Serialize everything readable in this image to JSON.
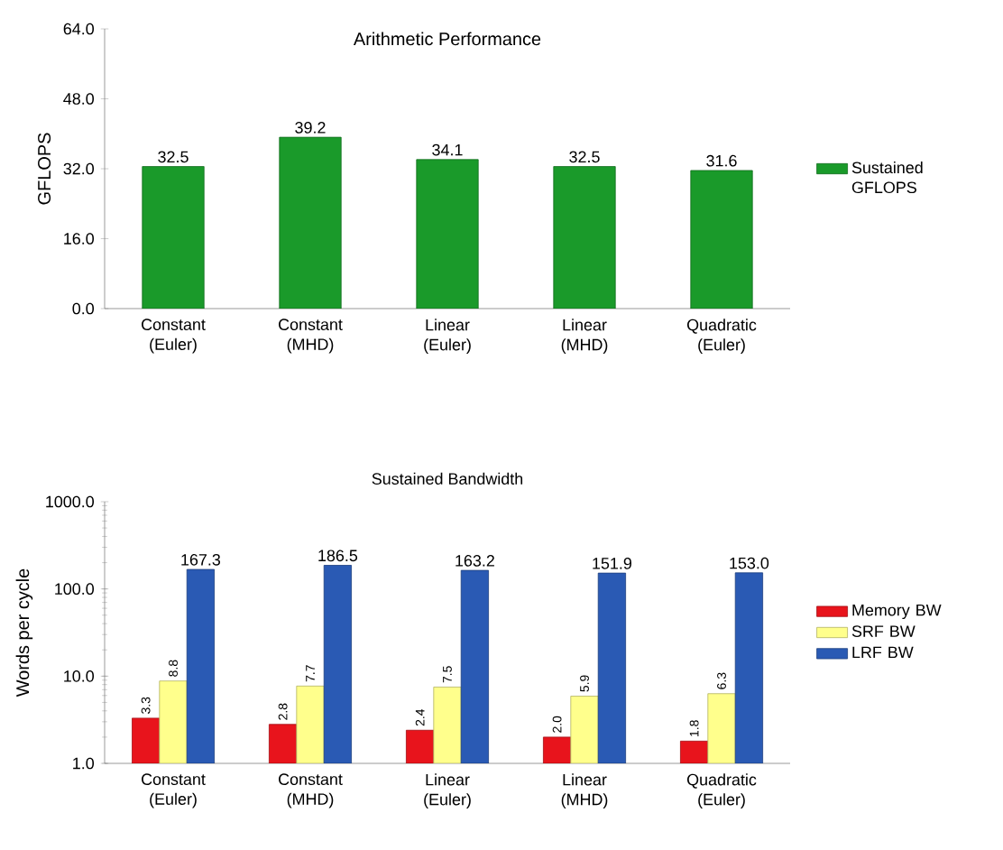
{
  "chart_data": [
    {
      "type": "bar",
      "title": "Arithmetic Performance",
      "ylabel": "GFLOPS",
      "categories": [
        "Constant (Euler)",
        "Constant (MHD)",
        "Linear (Euler)",
        "Linear (MHD)",
        "Quadratic (Euler)"
      ],
      "series": [
        {
          "name": "Sustained GFLOPS",
          "color": "#1a9a2a",
          "values": [
            32.5,
            39.2,
            34.1,
            32.5,
            31.6
          ]
        }
      ],
      "ylim": [
        0,
        64
      ],
      "yticks": [
        {
          "value": 0,
          "label": "0.0"
        },
        {
          "value": 16,
          "label": "16.0"
        },
        {
          "value": 32,
          "label": "32.0"
        },
        {
          "value": 48,
          "label": "48.0"
        },
        {
          "value": 64,
          "label": "64.0"
        }
      ],
      "data_labels": true,
      "legend": "right"
    },
    {
      "type": "bar",
      "title": "Sustained Bandwidth",
      "ylabel": "Words per cycle",
      "categories": [
        "Constant (Euler)",
        "Constant (MHD)",
        "Linear (Euler)",
        "Linear (MHD)",
        "Quadratic (Euler)"
      ],
      "series": [
        {
          "name": "Memory BW",
          "color": "#e8141c",
          "values": [
            3.3,
            2.8,
            2.4,
            2.0,
            1.8
          ],
          "value_labels": [
            "3.3",
            "2.8",
            "2.4",
            "2.0",
            "1.8"
          ]
        },
        {
          "name": "SRF BW",
          "color": "#ffff8c",
          "values": [
            8.8,
            7.7,
            7.5,
            5.9,
            6.3
          ],
          "value_labels": [
            "8.8",
            "7.7",
            "7.5",
            "5.9",
            "6.3"
          ]
        },
        {
          "name": "LRF BW",
          "color": "#2a5ab4",
          "values": [
            167.3,
            186.5,
            163.2,
            151.9,
            153.0
          ],
          "value_labels": [
            "167.3",
            "186.5",
            "163.2",
            "151.9",
            "153.0"
          ]
        }
      ],
      "log": true,
      "ylim": [
        1,
        1000
      ],
      "yticks": [
        {
          "value": 1,
          "label": "1.0"
        },
        {
          "value": 10,
          "label": "10.0"
        },
        {
          "value": 100,
          "label": "100.0"
        },
        {
          "value": 1000,
          "label": "1000.0"
        }
      ],
      "legend": "right"
    }
  ]
}
